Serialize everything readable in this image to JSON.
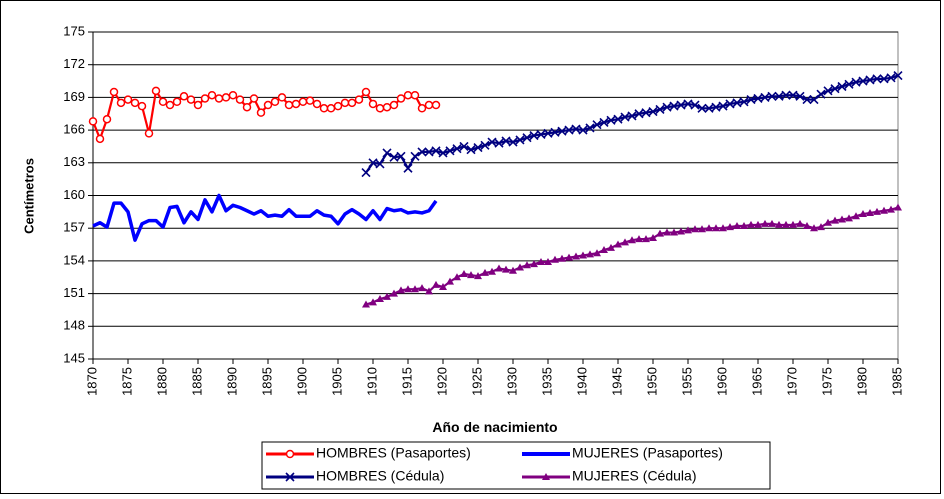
{
  "chart_data": {
    "type": "line",
    "x_label": "Año de nacimiento",
    "y_label": "Centímetros",
    "xlim": [
      1870,
      1985
    ],
    "xticks": [
      1870,
      1875,
      1880,
      1885,
      1890,
      1895,
      1900,
      1905,
      1910,
      1915,
      1920,
      1925,
      1930,
      1935,
      1940,
      1945,
      1950,
      1955,
      1960,
      1965,
      1970,
      1975,
      1980,
      1985
    ],
    "ylim": [
      145,
      175
    ],
    "yticks": [
      145,
      148,
      151,
      154,
      157,
      160,
      163,
      166,
      169,
      172,
      175
    ],
    "grid": true,
    "legend": "bottom",
    "x": [
      1870,
      1871,
      1872,
      1873,
      1874,
      1875,
      1876,
      1877,
      1878,
      1879,
      1880,
      1881,
      1882,
      1883,
      1884,
      1885,
      1886,
      1887,
      1888,
      1889,
      1890,
      1891,
      1892,
      1893,
      1894,
      1895,
      1896,
      1897,
      1898,
      1899,
      1900,
      1901,
      1902,
      1903,
      1904,
      1905,
      1906,
      1907,
      1908,
      1909,
      1910,
      1911,
      1912,
      1913,
      1914,
      1915,
      1916,
      1917,
      1918,
      1919,
      1920,
      1921,
      1922,
      1923,
      1924,
      1925,
      1926,
      1927,
      1928,
      1929,
      1930,
      1931,
      1932,
      1933,
      1934,
      1935,
      1936,
      1937,
      1938,
      1939,
      1940,
      1941,
      1942,
      1943,
      1944,
      1945,
      1946,
      1947,
      1948,
      1949,
      1950,
      1951,
      1952,
      1953,
      1954,
      1955,
      1956,
      1957,
      1958,
      1959,
      1960,
      1961,
      1962,
      1963,
      1964,
      1965,
      1966,
      1967,
      1968,
      1969,
      1970,
      1971,
      1972,
      1973,
      1974,
      1975,
      1976,
      1977,
      1978,
      1979,
      1980,
      1981,
      1982,
      1983,
      1984,
      1985
    ],
    "series": [
      {
        "name": "HOMBRES (Pasaportes)",
        "color": "#ff0000",
        "marker": "circle",
        "values": [
          166.8,
          165.2,
          167.0,
          169.5,
          168.5,
          168.8,
          168.5,
          168.2,
          165.7,
          169.6,
          168.6,
          168.3,
          168.6,
          169.1,
          168.8,
          168.3,
          168.9,
          169.2,
          168.9,
          169.0,
          169.2,
          168.8,
          168.1,
          168.9,
          167.6,
          168.3,
          168.6,
          169.0,
          168.3,
          168.4,
          168.6,
          168.7,
          168.4,
          168.0,
          168.0,
          168.2,
          168.5,
          168.5,
          168.8,
          169.5,
          168.4,
          168.0,
          168.1,
          168.3,
          168.9,
          169.2,
          169.2,
          168.0,
          168.3,
          168.3,
          null,
          null,
          null,
          null,
          null,
          null,
          null,
          null,
          null,
          null,
          null,
          null,
          null,
          null,
          null,
          null,
          null,
          null,
          null,
          null,
          null,
          null,
          null,
          null,
          null,
          null,
          null,
          null,
          null,
          null,
          null,
          null,
          null,
          null,
          null,
          null,
          null,
          null,
          null,
          null,
          null,
          null,
          null,
          null,
          null,
          null,
          null,
          null,
          null,
          null,
          null,
          null,
          null,
          null,
          null,
          null,
          null,
          null,
          null,
          null,
          null,
          null,
          null,
          null,
          null,
          null
        ]
      },
      {
        "name": "MUJERES (Pasaportes)",
        "color": "#0000ff",
        "marker": "none",
        "values": [
          157.2,
          157.5,
          157.1,
          159.3,
          159.3,
          158.5,
          155.9,
          157.4,
          157.7,
          157.7,
          157.1,
          158.9,
          159.0,
          157.5,
          158.5,
          157.8,
          159.6,
          158.5,
          160.0,
          158.6,
          159.1,
          158.9,
          158.6,
          158.3,
          158.6,
          158.1,
          158.2,
          158.1,
          158.7,
          158.1,
          158.1,
          158.1,
          158.6,
          158.2,
          158.1,
          157.4,
          158.3,
          158.7,
          158.3,
          157.8,
          158.6,
          157.8,
          158.8,
          158.6,
          158.7,
          158.4,
          158.5,
          158.4,
          158.6,
          159.5,
          null,
          null,
          null,
          null,
          null,
          null,
          null,
          null,
          null,
          null,
          null,
          null,
          null,
          null,
          null,
          null,
          null,
          null,
          null,
          null,
          null,
          null,
          null,
          null,
          null,
          null,
          null,
          null,
          null,
          null,
          null,
          null,
          null,
          null,
          null,
          null,
          null,
          null,
          null,
          null,
          null,
          null,
          null,
          null,
          null,
          null,
          null,
          null,
          null,
          null,
          null,
          null,
          null,
          null,
          null,
          null,
          null,
          null,
          null,
          null,
          null,
          null,
          null,
          null,
          null,
          null
        ]
      },
      {
        "name": "HOMBRES (Cédula)",
        "color": "#000080",
        "marker": "x",
        "values": [
          null,
          null,
          null,
          null,
          null,
          null,
          null,
          null,
          null,
          null,
          null,
          null,
          null,
          null,
          null,
          null,
          null,
          null,
          null,
          null,
          null,
          null,
          null,
          null,
          null,
          null,
          null,
          null,
          null,
          null,
          null,
          null,
          null,
          null,
          null,
          null,
          null,
          null,
          null,
          162.1,
          163.0,
          162.9,
          163.9,
          163.5,
          163.6,
          162.5,
          163.6,
          164.0,
          164.0,
          164.1,
          163.9,
          164.1,
          164.3,
          164.5,
          164.2,
          164.4,
          164.6,
          164.9,
          164.8,
          165.0,
          164.9,
          165.1,
          165.3,
          165.5,
          165.6,
          165.7,
          165.8,
          165.9,
          166.0,
          166.1,
          166.0,
          166.2,
          166.5,
          166.7,
          166.9,
          167.0,
          167.2,
          167.3,
          167.5,
          167.6,
          167.7,
          167.9,
          168.1,
          168.2,
          168.3,
          168.4,
          168.3,
          168.0,
          168.0,
          168.1,
          168.2,
          168.4,
          168.5,
          168.6,
          168.8,
          168.9,
          169.0,
          169.1,
          169.1,
          169.2,
          169.2,
          169.1,
          168.8,
          168.8,
          169.3,
          169.6,
          169.8,
          170.0,
          170.2,
          170.4,
          170.5,
          170.6,
          170.7,
          170.7,
          170.8,
          171.0
        ]
      },
      {
        "name": "MUJERES (Cédula)",
        "color": "#800080",
        "marker": "triangle",
        "values": [
          null,
          null,
          null,
          null,
          null,
          null,
          null,
          null,
          null,
          null,
          null,
          null,
          null,
          null,
          null,
          null,
          null,
          null,
          null,
          null,
          null,
          null,
          null,
          null,
          null,
          null,
          null,
          null,
          null,
          null,
          null,
          null,
          null,
          null,
          null,
          null,
          null,
          null,
          null,
          150.0,
          150.2,
          150.5,
          150.7,
          151.0,
          151.3,
          151.4,
          151.4,
          151.5,
          151.2,
          151.8,
          151.6,
          152.1,
          152.5,
          152.8,
          152.7,
          152.6,
          152.9,
          153.0,
          153.3,
          153.2,
          153.1,
          153.4,
          153.6,
          153.7,
          153.9,
          153.9,
          154.1,
          154.2,
          154.3,
          154.4,
          154.5,
          154.6,
          154.7,
          155.0,
          155.2,
          155.5,
          155.7,
          155.9,
          156.0,
          156.0,
          156.1,
          156.5,
          156.6,
          156.6,
          156.7,
          156.8,
          156.9,
          156.9,
          157.0,
          157.0,
          157.0,
          157.1,
          157.2,
          157.2,
          157.3,
          157.3,
          157.4,
          157.4,
          157.3,
          157.3,
          157.3,
          157.4,
          157.2,
          157.0,
          157.1,
          157.5,
          157.7,
          157.8,
          157.9,
          158.1,
          158.3,
          158.4,
          158.5,
          158.6,
          158.7,
          158.9
        ]
      }
    ]
  }
}
